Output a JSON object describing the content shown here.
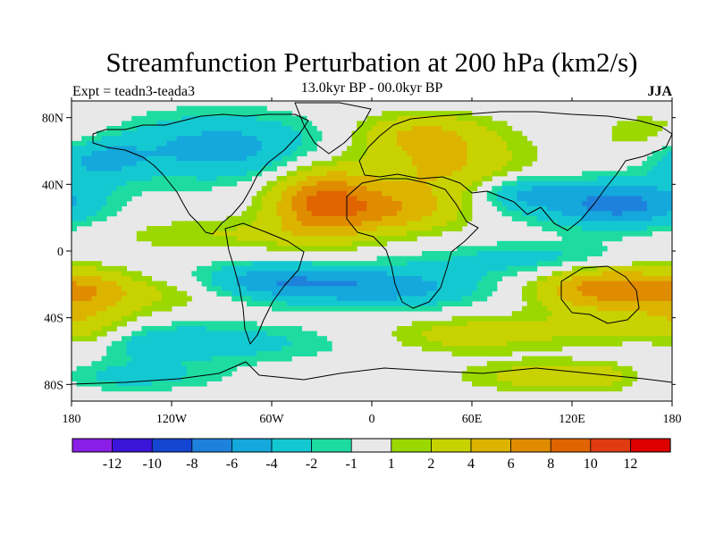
{
  "chart_data": {
    "type": "heatmap",
    "title": "Streamfunction Perturbation at 200 hPa (km2/s)",
    "subtitle": "13.0kyr BP - 00.0kyr BP",
    "left_label": "Expt = teadn3-teada3",
    "right_label": "JJA",
    "x_axis": {
      "range": [
        -180,
        180
      ],
      "ticks": [
        {
          "value": -180,
          "label": "180"
        },
        {
          "value": -120,
          "label": "120W"
        },
        {
          "value": -60,
          "label": "60W"
        },
        {
          "value": 0,
          "label": "0"
        },
        {
          "value": 60,
          "label": "60E"
        },
        {
          "value": 120,
          "label": "120E"
        },
        {
          "value": 180,
          "label": "180"
        }
      ]
    },
    "y_axis": {
      "range": [
        -90,
        90
      ],
      "ticks": [
        {
          "value": 80,
          "label": "80N"
        },
        {
          "value": 40,
          "label": "40N"
        },
        {
          "value": 0,
          "label": "0"
        },
        {
          "value": -40,
          "label": "40S"
        },
        {
          "value": -80,
          "label": "80S"
        }
      ]
    },
    "colorbar": {
      "labels": [
        "-12",
        "-10",
        "-8",
        "-6",
        "-4",
        "-2",
        "-1",
        "1",
        "2",
        "4",
        "6",
        "8",
        "10",
        "12"
      ],
      "levels": [
        -12,
        -10,
        -8,
        -6,
        -4,
        -2,
        -1,
        1,
        2,
        4,
        6,
        8,
        10,
        12
      ],
      "colors": [
        "#8a1ee6",
        "#3b14d8",
        "#1446d2",
        "#1e82dc",
        "#14a8dc",
        "#14c8d2",
        "#1edca0",
        "#e8e8e8",
        "#9ad800",
        "#c8d200",
        "#dcb400",
        "#e08c00",
        "#e06400",
        "#e03c14",
        "#dc0000"
      ]
    },
    "field_anomalies": [
      {
        "lon": -30,
        "lat": 30,
        "amp": 8,
        "lon_spread": 22,
        "lat_spread": 15
      },
      {
        "lon": 15,
        "lat": 25,
        "amp": 5,
        "lon_spread": 28,
        "lat_spread": 10
      },
      {
        "lon": 45,
        "lat": 50,
        "amp": 4,
        "lon_spread": 35,
        "lat_spread": 12
      },
      {
        "lon": 30,
        "lat": 70,
        "amp": 4,
        "lon_spread": 30,
        "lat_spread": 9
      },
      {
        "lon": -90,
        "lat": 62,
        "amp": -5,
        "lon_spread": 45,
        "lat_spread": 14
      },
      {
        "lon": -165,
        "lat": 55,
        "amp": -4,
        "lon_spread": 20,
        "lat_spread": 10
      },
      {
        "lon": 148,
        "lat": 28,
        "amp": -7,
        "lon_spread": 32,
        "lat_spread": 10
      },
      {
        "lon": 90,
        "lat": 35,
        "amp": -4,
        "lon_spread": 20,
        "lat_spread": 8
      },
      {
        "lon": 170,
        "lat": 70,
        "amp": 2,
        "lon_spread": 25,
        "lat_spread": 10
      },
      {
        "lon": -90,
        "lat": 10,
        "amp": 2,
        "lon_spread": 50,
        "lat_spread": 7
      },
      {
        "lon": -60,
        "lat": -18,
        "amp": -5,
        "lon_spread": 35,
        "lat_spread": 8
      },
      {
        "lon": 10,
        "lat": -22,
        "amp": -5,
        "lon_spread": 40,
        "lat_spread": 9
      },
      {
        "lon": 100,
        "lat": -5,
        "amp": -3,
        "lon_spread": 45,
        "lat_spread": 7
      },
      {
        "lon": 138,
        "lat": -22,
        "amp": 7,
        "lon_spread": 28,
        "lat_spread": 10
      },
      {
        "lon": -170,
        "lat": -25,
        "amp": 5,
        "lon_spread": 22,
        "lat_spread": 10
      },
      {
        "lon": -115,
        "lat": -25,
        "amp": 2,
        "lon_spread": 25,
        "lat_spread": 8
      },
      {
        "lon": -130,
        "lat": -55,
        "amp": -4,
        "lon_spread": 70,
        "lat_spread": 8
      },
      {
        "lon": 60,
        "lat": -50,
        "amp": 3,
        "lon_spread": 40,
        "lat_spread": 8
      },
      {
        "lon": 150,
        "lat": -50,
        "amp": 3,
        "lon_spread": 35,
        "lat_spread": 9
      },
      {
        "lon": -170,
        "lat": -50,
        "amp": 3,
        "lon_spread": 20,
        "lat_spread": 10
      },
      {
        "lon": 120,
        "lat": -75,
        "amp": 4,
        "lon_spread": 40,
        "lat_spread": 6
      },
      {
        "lon": -150,
        "lat": -75,
        "amp": -3,
        "lon_spread": 40,
        "lat_spread": 6
      }
    ]
  }
}
